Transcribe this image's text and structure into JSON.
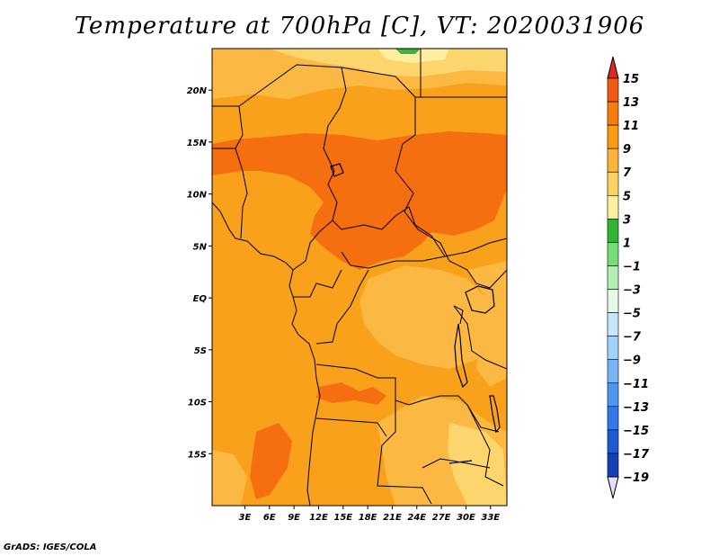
{
  "title": "Temperature at 700hPa [C], VT: 2020031906",
  "credit": "GrADS: IGES/COLA",
  "map": {
    "lon_range": [
      -1,
      35
    ],
    "lat_range": [
      -20,
      24
    ],
    "x_ticks": [
      "3E",
      "6E",
      "9E",
      "12E",
      "15E",
      "18E",
      "21E",
      "24E",
      "27E",
      "30E",
      "33E"
    ],
    "y_ticks": [
      "20N",
      "15N",
      "10N",
      "5N",
      "EQ",
      "5S",
      "10S",
      "15S"
    ]
  },
  "colorbar": {
    "labels": [
      "15",
      "13",
      "11",
      "9",
      "7",
      "5",
      "3",
      "1",
      "-1",
      "-3",
      "-5",
      "-7",
      "-9",
      "-11",
      "-13",
      "-15",
      "-17",
      "-19"
    ],
    "colors": [
      "#e0281e",
      "#f05a14",
      "#f57d0a",
      "#fa9b14",
      "#fbb43c",
      "#fcd264",
      "#fdf0a0",
      "#32b432",
      "#78dc78",
      "#b4f0b4",
      "#e6fae6",
      "#c8e6fa",
      "#a0d2fa",
      "#78b4f5",
      "#5096f0",
      "#3278e6",
      "#1e5ad2",
      "#1440b4",
      "#0a2896",
      "#10106e"
    ],
    "top_cap_color": "#e0281e",
    "bottom_cap_color": "#e0e0fa"
  },
  "field_colors": {
    "warm_9_11": "#f9a11b",
    "hot_11_13": "#f56f11",
    "mild_7_9": "#fbb843",
    "cool_5_7": "#fcd56d",
    "cool_3_5": "#fdeea0",
    "green_1_3": "#3cb43c"
  }
}
